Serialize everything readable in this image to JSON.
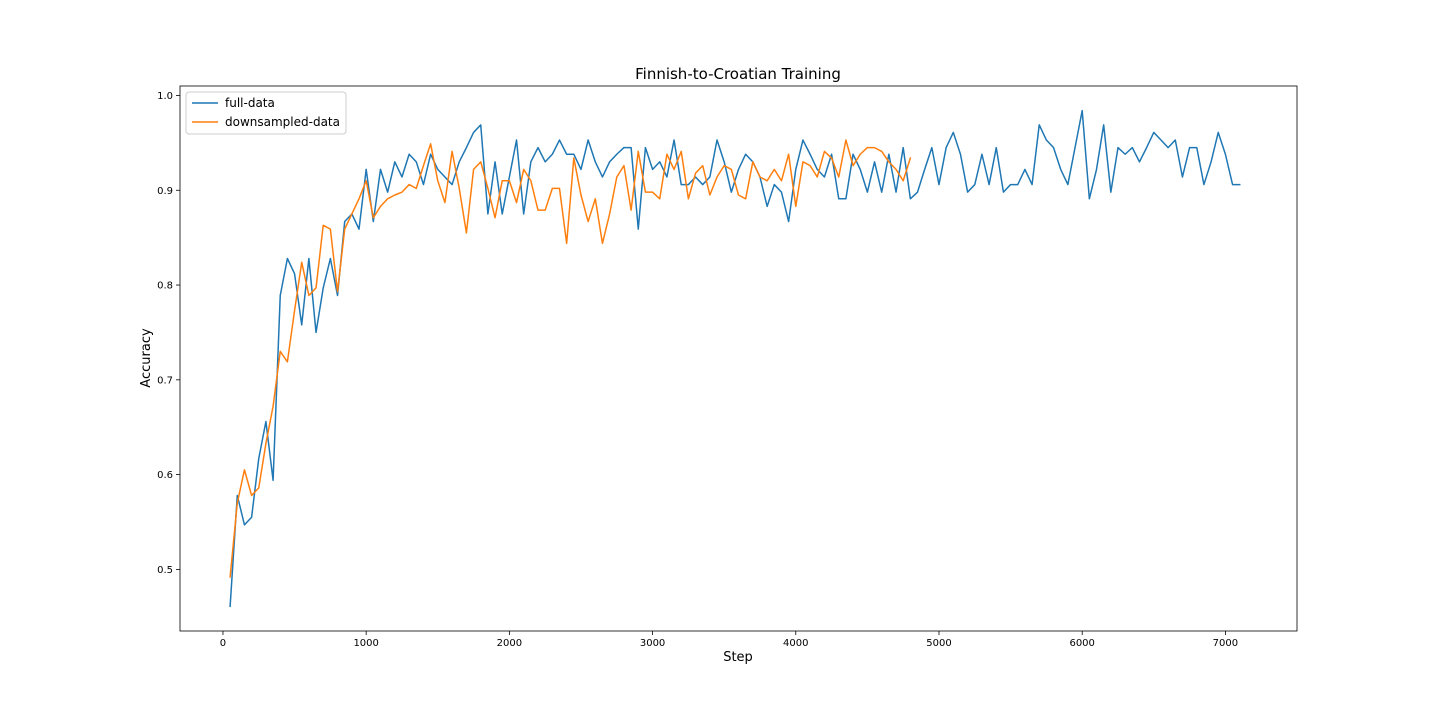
{
  "chart_data": {
    "type": "line",
    "title": "Finnish-to-Croatian Training",
    "xlabel": "Step",
    "ylabel": "Accuracy",
    "xlim": [
      -300,
      7500
    ],
    "ylim": [
      0.435,
      1.01
    ],
    "xticks": [
      0,
      1000,
      2000,
      3000,
      4000,
      5000,
      6000,
      7000
    ],
    "yticks": [
      0.5,
      0.6,
      0.7,
      0.8,
      0.9,
      1.0
    ],
    "xtick_labels": [
      "0",
      "1000",
      "2000",
      "3000",
      "4000",
      "5000",
      "6000",
      "7000"
    ],
    "ytick_labels": [
      "0.5",
      "0.6",
      "0.7",
      "0.8",
      "0.9",
      "1.0"
    ],
    "grid": false,
    "legend_position": "top-left",
    "series": [
      {
        "name": "full-data",
        "color": "#1f77b4",
        "x": [
          50,
          100,
          150,
          200,
          250,
          300,
          350,
          400,
          450,
          500,
          550,
          600,
          650,
          700,
          750,
          800,
          850,
          900,
          950,
          1000,
          1050,
          1100,
          1150,
          1200,
          1250,
          1300,
          1350,
          1400,
          1450,
          1500,
          1550,
          1600,
          1650,
          1700,
          1750,
          1800,
          1850,
          1900,
          1950,
          2000,
          2050,
          2100,
          2150,
          2200,
          2250,
          2300,
          2350,
          2400,
          2450,
          2500,
          2550,
          2600,
          2650,
          2700,
          2750,
          2800,
          2850,
          2900,
          2950,
          3000,
          3050,
          3100,
          3150,
          3200,
          3250,
          3300,
          3350,
          3400,
          3450,
          3500,
          3550,
          3600,
          3650,
          3700,
          3750,
          3800,
          3850,
          3900,
          3950,
          4000,
          4050,
          4100,
          4150,
          4200,
          4250,
          4300,
          4350,
          4400,
          4450,
          4500,
          4550,
          4600,
          4650,
          4700,
          4750,
          4800,
          4850,
          4900,
          4950,
          5000,
          5050,
          5100,
          5150,
          5200,
          5250,
          5300,
          5350,
          5400,
          5450,
          5500,
          5550,
          5600,
          5650,
          5700,
          5750,
          5800,
          5850,
          5900,
          5950,
          6000,
          6050,
          6100,
          6150,
          6200,
          6250,
          6300,
          6350,
          6400,
          6450,
          6500,
          6550,
          6600,
          6650,
          6700,
          6750,
          6800,
          6850,
          6900,
          6950,
          7000,
          7050,
          7100
        ],
        "values": [
          0.461,
          0.578,
          0.547,
          0.555,
          0.617,
          0.656,
          0.594,
          0.789,
          0.828,
          0.812,
          0.758,
          0.828,
          0.75,
          0.797,
          0.828,
          0.789,
          0.867,
          0.875,
          0.859,
          0.922,
          0.867,
          0.922,
          0.898,
          0.93,
          0.914,
          0.938,
          0.93,
          0.906,
          0.938,
          0.922,
          0.914,
          0.906,
          0.93,
          0.945,
          0.961,
          0.969,
          0.875,
          0.93,
          0.875,
          0.914,
          0.953,
          0.875,
          0.93,
          0.945,
          0.93,
          0.938,
          0.953,
          0.938,
          0.938,
          0.922,
          0.953,
          0.93,
          0.914,
          0.93,
          0.938,
          0.945,
          0.945,
          0.859,
          0.945,
          0.922,
          0.93,
          0.914,
          0.953,
          0.906,
          0.906,
          0.914,
          0.906,
          0.914,
          0.953,
          0.93,
          0.898,
          0.922,
          0.938,
          0.93,
          0.914,
          0.883,
          0.906,
          0.898,
          0.867,
          0.922,
          0.953,
          0.938,
          0.922,
          0.914,
          0.938,
          0.891,
          0.891,
          0.938,
          0.922,
          0.898,
          0.93,
          0.898,
          0.938,
          0.898,
          0.945,
          0.891,
          0.898,
          0.922,
          0.945,
          0.906,
          0.945,
          0.961,
          0.938,
          0.898,
          0.906,
          0.938,
          0.906,
          0.945,
          0.898,
          0.906,
          0.906,
          0.922,
          0.906,
          0.969,
          0.953,
          0.945,
          0.922,
          0.906,
          0.945,
          0.984,
          0.891,
          0.922,
          0.969,
          0.898,
          0.945,
          0.938,
          0.945,
          0.93,
          0.945,
          0.961,
          0.953,
          0.945,
          0.953,
          0.914,
          0.945,
          0.945,
          0.906,
          0.93,
          0.961,
          0.938,
          0.906,
          0.906
        ]
      },
      {
        "name": "downsampled-data",
        "color": "#ff7f0e",
        "x": [
          50,
          100,
          150,
          200,
          250,
          300,
          350,
          400,
          450,
          500,
          550,
          600,
          650,
          700,
          750,
          800,
          850,
          900,
          950,
          1000,
          1050,
          1100,
          1150,
          1200,
          1250,
          1300,
          1350,
          1400,
          1450,
          1500,
          1550,
          1600,
          1650,
          1700,
          1750,
          1800,
          1850,
          1900,
          1950,
          2000,
          2050,
          2100,
          2150,
          2200,
          2250,
          2300,
          2350,
          2400,
          2450,
          2500,
          2550,
          2600,
          2650,
          2700,
          2750,
          2800,
          2850,
          2900,
          2950,
          3000,
          3050,
          3100,
          3150,
          3200,
          3250,
          3300,
          3350,
          3400,
          3450,
          3500,
          3550,
          3600,
          3650,
          3700,
          3750,
          3800,
          3850,
          3900,
          3950,
          4000,
          4050,
          4100,
          4150,
          4200,
          4250,
          4300,
          4350,
          4400,
          4450,
          4500,
          4550,
          4600,
          4650,
          4700,
          4750,
          4800
        ],
        "values": [
          0.492,
          0.57,
          0.605,
          0.578,
          0.586,
          0.633,
          0.672,
          0.73,
          0.719,
          0.773,
          0.824,
          0.789,
          0.797,
          0.863,
          0.859,
          0.793,
          0.859,
          0.875,
          0.891,
          0.91,
          0.871,
          0.883,
          0.891,
          0.895,
          0.898,
          0.906,
          0.902,
          0.926,
          0.949,
          0.91,
          0.887,
          0.941,
          0.902,
          0.855,
          0.922,
          0.93,
          0.902,
          0.871,
          0.91,
          0.91,
          0.887,
          0.922,
          0.91,
          0.879,
          0.879,
          0.902,
          0.902,
          0.844,
          0.934,
          0.895,
          0.867,
          0.891,
          0.844,
          0.875,
          0.914,
          0.926,
          0.879,
          0.941,
          0.898,
          0.898,
          0.891,
          0.938,
          0.922,
          0.941,
          0.891,
          0.918,
          0.926,
          0.895,
          0.914,
          0.926,
          0.922,
          0.895,
          0.891,
          0.93,
          0.914,
          0.91,
          0.922,
          0.91,
          0.938,
          0.883,
          0.93,
          0.926,
          0.914,
          0.941,
          0.934,
          0.914,
          0.953,
          0.926,
          0.938,
          0.945,
          0.945,
          0.941,
          0.93,
          0.922,
          0.91,
          0.934
        ]
      }
    ]
  }
}
